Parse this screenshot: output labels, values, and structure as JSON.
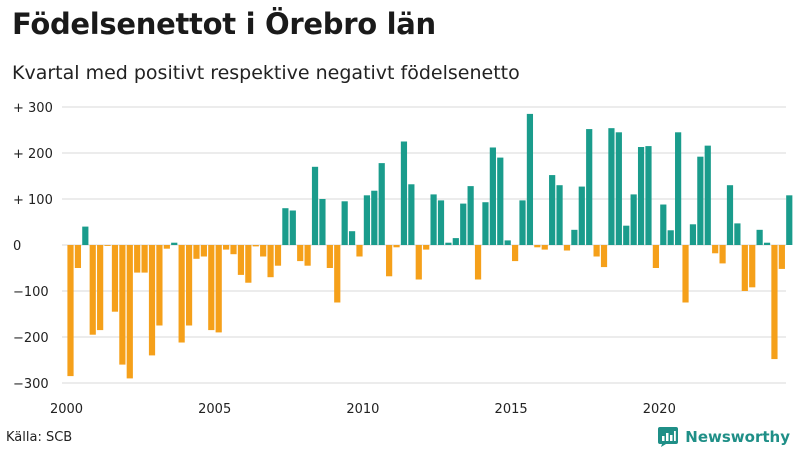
{
  "header": {
    "title": "Födelsenettot i Örebro län",
    "subtitle": "Kvartal med positivt respektive negativt födelsenetto"
  },
  "footer": {
    "source": "Källa: SCB",
    "brand": "Newsworthy"
  },
  "colors": {
    "positive": "#1a9c8c",
    "negative": "#f5a01a",
    "grid": "#d9d9d9",
    "brand": "#1f8f87"
  },
  "chart_data": {
    "type": "bar",
    "y_tick_labels": [
      "+ 300",
      "+ 200",
      "+ 100",
      "0",
      "−100",
      "−200",
      "−300"
    ],
    "y_tick_values": [
      300,
      200,
      100,
      0,
      -100,
      -200,
      -300
    ],
    "x_tick_labels": [
      "2000",
      "2005",
      "2010",
      "2015",
      "2020"
    ],
    "x_tick_years": [
      2000,
      2005,
      2010,
      2015,
      2020
    ],
    "ylim": [
      -315,
      310
    ],
    "start_year": 2000,
    "grid": true,
    "values": [
      -285,
      -50,
      40,
      -195,
      -185,
      -2,
      -145,
      -260,
      -290,
      -60,
      -60,
      -240,
      -175,
      -8,
      5,
      -212,
      -175,
      -30,
      -25,
      -185,
      -190,
      -10,
      -20,
      -65,
      -82,
      -3,
      -25,
      -70,
      -45,
      80,
      75,
      -35,
      -45,
      170,
      100,
      -50,
      -125,
      95,
      30,
      -25,
      108,
      118,
      178,
      -68,
      -5,
      225,
      132,
      -75,
      -10,
      110,
      97,
      5,
      15,
      90,
      128,
      -75,
      93,
      212,
      190,
      10,
      -35,
      97,
      285,
      -5,
      -10,
      152,
      130,
      -12,
      33,
      127,
      252,
      -25,
      -48,
      254,
      245,
      42,
      110,
      213,
      215,
      -50,
      88,
      32,
      245,
      -125,
      45,
      192,
      216,
      -18,
      -40,
      130,
      47,
      -100,
      -92,
      33,
      5,
      -248,
      -52,
      108
    ]
  }
}
